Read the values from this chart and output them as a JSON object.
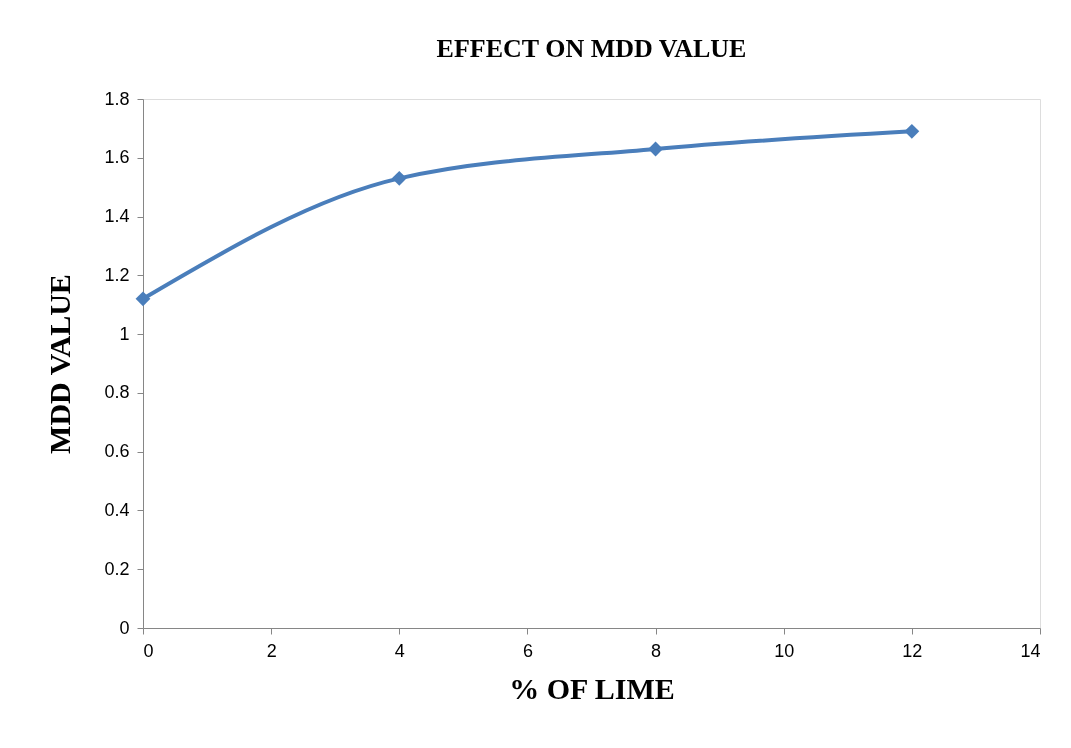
{
  "chart_data": {
    "type": "line",
    "title": "EFFECT ON MDD VALUE",
    "xlabel": "% OF LIME",
    "ylabel": "MDD VALUE",
    "x": [
      0,
      4,
      8,
      12
    ],
    "series": [
      {
        "color": "#4a7ebb",
        "values": [
          1.12,
          1.53,
          1.63,
          1.69
        ]
      }
    ],
    "xlim": [
      0,
      14
    ],
    "xticks": [
      0,
      2,
      4,
      6,
      8,
      10,
      12,
      14
    ],
    "ylim": [
      0,
      1.8
    ],
    "yticks": [
      0,
      0.2,
      0.4,
      0.6,
      0.8,
      1,
      1.2,
      1.4,
      1.6,
      1.8
    ],
    "marker": "diamond",
    "line_style": "solid",
    "grid": false,
    "legend": false
  }
}
